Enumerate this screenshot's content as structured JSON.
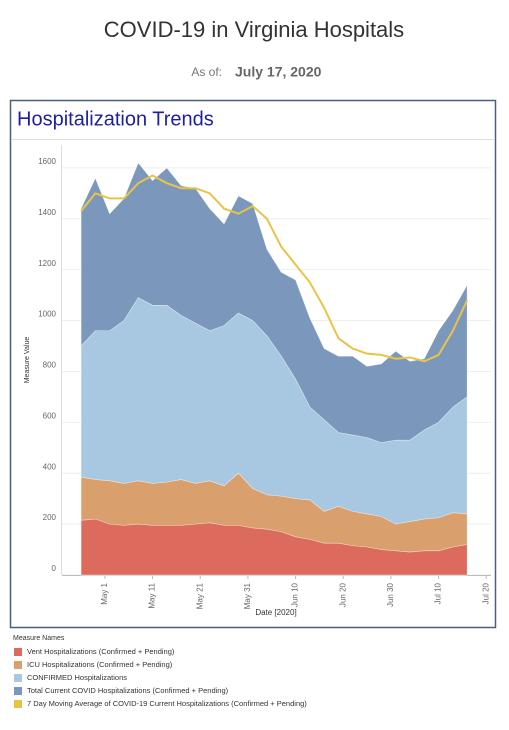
{
  "header": {
    "title": "COVID-19 in Virginia Hospitals",
    "as_of_label": "As of:",
    "as_of_date": "July 17, 2020"
  },
  "chart_data": {
    "type": "area",
    "title": "Hospitalization Trends",
    "x_label": "Date [2020]",
    "y_label": "Measure Value",
    "legend_title": "Measure Names",
    "grid": true,
    "x": [
      "2020-04-26",
      "2020-04-29",
      "2020-05-02",
      "2020-05-05",
      "2020-05-08",
      "2020-05-11",
      "2020-05-14",
      "2020-05-17",
      "2020-05-20",
      "2020-05-23",
      "2020-05-26",
      "2020-05-29",
      "2020-06-01",
      "2020-06-04",
      "2020-06-07",
      "2020-06-10",
      "2020-06-13",
      "2020-06-16",
      "2020-06-19",
      "2020-06-22",
      "2020-06-25",
      "2020-06-28",
      "2020-07-01",
      "2020-07-04",
      "2020-07-07",
      "2020-07-10",
      "2020-07-13",
      "2020-07-16"
    ],
    "xlim": [
      "2020-04-22",
      "2020-07-21"
    ],
    "xticks": [
      {
        "value": "2020-05-01",
        "label": "May 1"
      },
      {
        "value": "2020-05-11",
        "label": "May 11"
      },
      {
        "value": "2020-05-21",
        "label": "May 21"
      },
      {
        "value": "2020-05-31",
        "label": "May 31"
      },
      {
        "value": "2020-06-10",
        "label": "Jun 10"
      },
      {
        "value": "2020-06-20",
        "label": "Jun 20"
      },
      {
        "value": "2020-06-30",
        "label": "Jun 30"
      },
      {
        "value": "2020-07-10",
        "label": "Jul 10"
      },
      {
        "value": "2020-07-20",
        "label": "Jul 20"
      }
    ],
    "ylim": [
      0,
      1690
    ],
    "yticks": [
      0,
      200,
      400,
      600,
      800,
      1000,
      1200,
      1400,
      1600
    ],
    "series": [
      {
        "name": "Total Current COVID Hospitalizations (Confirmed + Pending)",
        "color": "#7b98bc",
        "mark": "area",
        "values": [
          1440,
          1560,
          1420,
          1480,
          1620,
          1550,
          1600,
          1530,
          1520,
          1440,
          1380,
          1490,
          1460,
          1280,
          1190,
          1160,
          1010,
          890,
          860,
          860,
          820,
          830,
          880,
          840,
          850,
          960,
          1040,
          1140
        ]
      },
      {
        "name": "CONFIRMED Hospitalizations",
        "color": "#a8c8e1",
        "mark": "area",
        "values": [
          900,
          960,
          960,
          1000,
          1090,
          1060,
          1060,
          1020,
          990,
          960,
          980,
          1030,
          1000,
          940,
          860,
          770,
          660,
          610,
          560,
          550,
          540,
          520,
          530,
          530,
          570,
          600,
          660,
          700
        ]
      },
      {
        "name": "ICU Hospitalizations (Confirmed + Pending)",
        "color": "#d9a06e",
        "mark": "area",
        "values": [
          385,
          375,
          370,
          360,
          370,
          360,
          365,
          375,
          360,
          370,
          350,
          400,
          340,
          315,
          310,
          300,
          295,
          250,
          270,
          250,
          240,
          230,
          200,
          210,
          220,
          225,
          245,
          240
        ]
      },
      {
        "name": "Vent Hospitalizations (Confirmed + Pending)",
        "color": "#dc6b5d",
        "mark": "area",
        "values": [
          215,
          220,
          200,
          195,
          200,
          195,
          195,
          195,
          200,
          205,
          195,
          195,
          185,
          180,
          170,
          150,
          140,
          125,
          125,
          115,
          110,
          100,
          95,
          90,
          95,
          95,
          110,
          120
        ]
      },
      {
        "name": "7 Day Moving Average of COVID-19 Current Hospitalizations (Confirmed + Pending)",
        "color": "#e8c446",
        "mark": "line",
        "values": [
          1430,
          1500,
          1480,
          1480,
          1540,
          1570,
          1540,
          1520,
          1520,
          1500,
          1440,
          1420,
          1450,
          1400,
          1290,
          1220,
          1150,
          1050,
          930,
          890,
          870,
          865,
          850,
          855,
          840,
          865,
          960,
          1080
        ]
      }
    ],
    "legend_order": [
      3,
      2,
      1,
      0,
      4
    ]
  }
}
